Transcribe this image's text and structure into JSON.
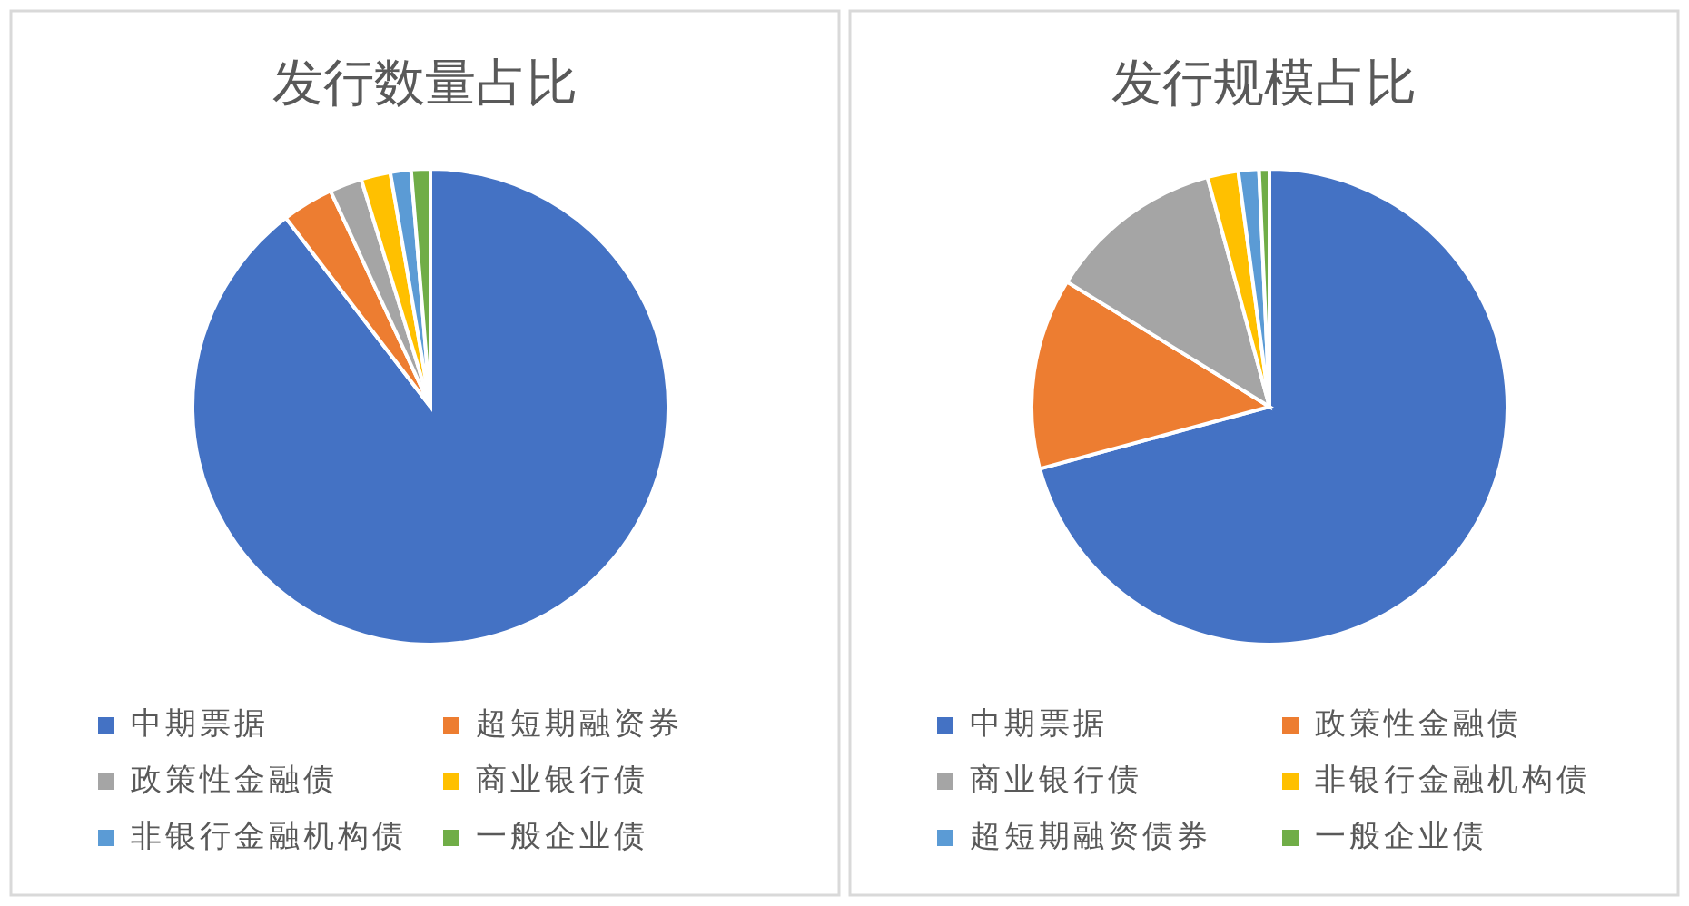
{
  "chart_data": [
    {
      "type": "pie",
      "title": "发行数量占比",
      "legend": "bottom",
      "categories": [
        "中期票据",
        "超短期融资券",
        "政策性金融债",
        "商业银行债",
        "非银行金融机构债",
        "一般企业债"
      ],
      "values": [
        89.6,
        3.5,
        2.2,
        2.0,
        1.4,
        1.3
      ],
      "colors": [
        "#4472c4",
        "#ed7d31",
        "#a5a5a5",
        "#ffc000",
        "#5b9bd5",
        "#70ad47"
      ]
    },
    {
      "type": "pie",
      "title": "发行规模占比",
      "legend": "bottom",
      "categories": [
        "中期票据",
        "政策性金融债",
        "商业银行债",
        "非银行金融机构债",
        "超短期融资债券",
        "一般企业债"
      ],
      "values": [
        70.8,
        13.0,
        12.0,
        2.1,
        1.4,
        0.7
      ],
      "colors": [
        "#4472c4",
        "#ed7d31",
        "#a5a5a5",
        "#ffc000",
        "#5b9bd5",
        "#70ad47"
      ]
    }
  ]
}
